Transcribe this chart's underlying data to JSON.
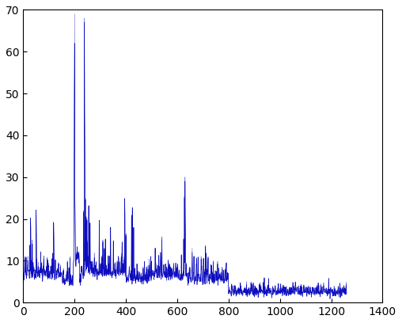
{
  "xlim": [
    0,
    1400
  ],
  "ylim": [
    0,
    70
  ],
  "xticks": [
    0,
    200,
    400,
    600,
    800,
    1000,
    1200,
    1400
  ],
  "yticks": [
    0,
    10,
    20,
    30,
    40,
    50,
    60,
    70
  ],
  "line_color1": "#7777dd",
  "line_color2": "#0000bb",
  "linewidth": 0.5,
  "n_points": 1260,
  "figsize": [
    5.08,
    4.08
  ],
  "dpi": 100,
  "background": "#ffffff",
  "tick_labelsize": 10,
  "spine_linewidth": 0.8
}
